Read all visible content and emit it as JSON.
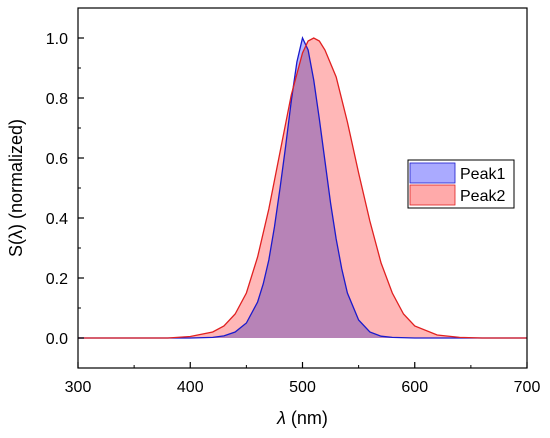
{
  "chart_data": {
    "type": "area",
    "title": "",
    "xlabel_symbol": "λ",
    "xlabel_unit": " (nm)",
    "ylabel": "S(λ) (normalized)",
    "xlim": [
      300,
      700
    ],
    "ylim": [
      -0.1,
      1.1
    ],
    "xticks": [
      300,
      400,
      500,
      600,
      700
    ],
    "yticks": [
      0.0,
      0.2,
      0.4,
      0.6,
      0.8,
      1.0
    ],
    "ytick_labels": [
      "0.0",
      "0.2",
      "0.4",
      "0.6",
      "0.8",
      "1.0"
    ],
    "grid": false,
    "legend_position": "right",
    "series": [
      {
        "name": "Peak1",
        "fill": "#aaaaff",
        "stroke": "#1a1acc",
        "x": [
          300,
          400,
          420,
          430,
          440,
          450,
          460,
          465,
          470,
          475,
          480,
          485,
          490,
          495,
          500,
          505,
          510,
          515,
          520,
          525,
          530,
          535,
          540,
          550,
          560,
          570,
          580,
          600,
          700
        ],
        "y": [
          0.0,
          0.0,
          0.002,
          0.007,
          0.02,
          0.05,
          0.12,
          0.18,
          0.26,
          0.37,
          0.5,
          0.64,
          0.79,
          0.92,
          1.0,
          0.96,
          0.86,
          0.73,
          0.59,
          0.45,
          0.33,
          0.23,
          0.15,
          0.06,
          0.02,
          0.006,
          0.002,
          0.0,
          0.0
        ]
      },
      {
        "name": "Peak2",
        "fill": "#ffaaaa",
        "stroke": "#e02020",
        "x": [
          300,
          380,
          400,
          420,
          430,
          440,
          450,
          460,
          470,
          480,
          490,
          500,
          505,
          510,
          515,
          520,
          530,
          540,
          550,
          560,
          570,
          580,
          590,
          600,
          620,
          640,
          660,
          700
        ],
        "y": [
          0.0,
          0.0,
          0.005,
          0.02,
          0.04,
          0.08,
          0.15,
          0.27,
          0.43,
          0.62,
          0.81,
          0.95,
          0.99,
          1.0,
          0.99,
          0.96,
          0.87,
          0.72,
          0.55,
          0.39,
          0.25,
          0.15,
          0.08,
          0.04,
          0.01,
          0.002,
          0.0,
          0.0
        ]
      }
    ]
  }
}
